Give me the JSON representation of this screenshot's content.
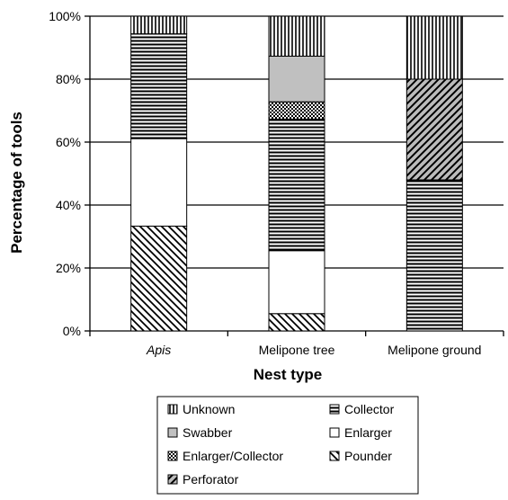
{
  "chart_data": {
    "type": "bar",
    "stacked": true,
    "xlabel": "Nest type",
    "ylabel": "Percentage of tools",
    "ylim": [
      0,
      100
    ],
    "yticks": [
      "0%",
      "20%",
      "40%",
      "60%",
      "80%",
      "100%"
    ],
    "categories": [
      "Apis",
      "Melipone tree",
      "Melipone ground"
    ],
    "category_italic": [
      true,
      false,
      false
    ],
    "grid": "horizontal major gridlines",
    "legend_position": "bottom",
    "series": [
      {
        "name": "Pounder",
        "pattern": "diag-backslash",
        "values": [
          33.3,
          5.5,
          0
        ]
      },
      {
        "name": "Enlarger",
        "pattern": "blank",
        "values": [
          27.8,
          20,
          0
        ]
      },
      {
        "name": "Collector",
        "pattern": "horizontal-lines",
        "values": [
          33.3,
          41.8,
          48
        ]
      },
      {
        "name": "Enlarger/Collector",
        "pattern": "checker",
        "values": [
          0,
          5.5,
          0
        ]
      },
      {
        "name": "Swabber",
        "pattern": "gray",
        "values": [
          0,
          14.5,
          0
        ]
      },
      {
        "name": "Perforator",
        "pattern": "diag-forward",
        "values": [
          0,
          0,
          32
        ]
      },
      {
        "name": "Unknown",
        "pattern": "vertical-lines",
        "values": [
          5.6,
          12.7,
          20
        ]
      }
    ],
    "legend_order": [
      "Unknown",
      "Collector",
      "Swabber",
      "Enlarger",
      "Enlarger/Collector",
      "Pounder",
      "Perforator"
    ],
    "colors": {
      "gray_fill": "#c0c0c0",
      "line": "#000000",
      "background": "#ffffff"
    }
  }
}
